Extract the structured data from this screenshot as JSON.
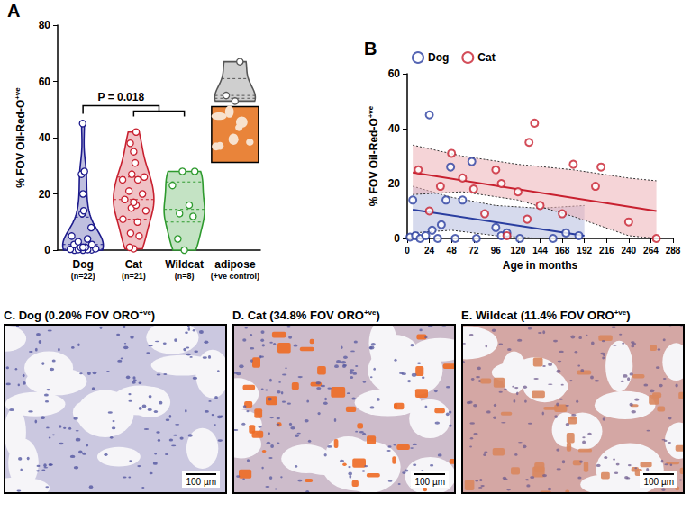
{
  "chart_data": [
    {
      "panel": "A",
      "type": "violin",
      "categories": [
        "Dog",
        "Cat",
        "Wildcat",
        "adipose"
      ],
      "category_notes": [
        "(n=22)",
        "(n=21)",
        "(n=8)",
        "(+ve control)"
      ],
      "ylabel": [
        "% FOV Oil-Red-O",
        "+ve"
      ],
      "ylim": [
        0,
        80
      ],
      "yticks": [
        0,
        20,
        40,
        60,
        80
      ],
      "grid": false,
      "colors": [
        "#1c1a8c",
        "#c8202f",
        "#2e9a2e",
        "#555555"
      ],
      "values": [
        [
          45,
          28,
          27,
          20,
          14,
          13,
          8,
          5,
          4,
          3,
          2,
          2,
          1,
          1,
          1,
          0.5,
          0.3,
          0.2,
          0.2,
          0.1,
          0,
          0
        ],
        [
          42,
          38,
          35,
          31,
          27,
          26,
          25,
          25,
          21,
          20,
          18,
          17,
          16,
          15,
          14,
          11,
          10,
          6,
          5,
          1,
          0.5
        ],
        [
          28,
          28,
          23,
          16,
          13,
          12,
          4,
          0
        ],
        [
          67,
          55,
          53
        ]
      ],
      "annotations": [
        {
          "text": "P = 0.018",
          "from": "Dog",
          "to": [
            "Cat",
            "Wildcat"
          ]
        }
      ]
    },
    {
      "panel": "B",
      "type": "scatter",
      "xlabel": "Age in months",
      "ylabel": [
        "% FOV Oil-Red-O",
        "+ve"
      ],
      "xlim": [
        0,
        288
      ],
      "xticks": [
        0,
        24,
        48,
        72,
        96,
        120,
        144,
        168,
        192,
        216,
        240,
        264,
        288
      ],
      "ylim": [
        0,
        60
      ],
      "yticks": [
        0,
        20,
        40,
        60
      ],
      "grid": false,
      "legend": "top left",
      "series": [
        {
          "name": "Dog",
          "color": "#2a3ea0",
          "marker": "circle",
          "x": [
            3,
            6,
            9,
            14,
            20,
            24,
            27,
            33,
            37,
            42,
            47,
            52,
            60,
            70,
            75,
            96,
            102,
            108,
            122,
            158,
            172,
            186
          ],
          "values": [
            0.5,
            14,
            1,
            0,
            1,
            45,
            3,
            0,
            5,
            14,
            26,
            0,
            14,
            28,
            0,
            4,
            1,
            2,
            0,
            0,
            2,
            1
          ],
          "fit": {
            "x": [
              6,
              192
            ],
            "values": [
              10.5,
              1
            ]
          },
          "ci": {
            "x": [
              6,
              48,
              96,
              144,
              192
            ],
            "lower": [
              2,
              3,
              1,
              -3,
              -8
            ],
            "upper": [
              19,
              15,
              12,
              11,
              12
            ]
          }
        },
        {
          "name": "Cat",
          "color": "#c8202f",
          "marker": "circle",
          "x": [
            12,
            24,
            36,
            48,
            60,
            72,
            84,
            96,
            102,
            108,
            120,
            130,
            132,
            138,
            144,
            168,
            180,
            204,
            210,
            240,
            270
          ],
          "values": [
            25,
            10,
            19,
            31,
            22,
            18,
            9,
            25,
            20,
            1,
            17,
            7,
            35,
            42,
            12,
            9,
            27,
            19,
            26,
            6,
            0
          ],
          "fit": {
            "x": [
              6,
              270
            ],
            "values": [
              24,
              10
            ]
          },
          "ci": {
            "x": [
              6,
              60,
              120,
              180,
              240,
              270
            ],
            "lower": [
              16,
              17,
              14,
              8,
              1,
              -1
            ],
            "upper": [
              34,
              30,
              27,
              25,
              22,
              21
            ]
          }
        }
      ]
    }
  ],
  "images": [
    {
      "letter": "C.",
      "title": [
        "Dog (0.20% FOV ORO",
        "+ve",
        ")"
      ],
      "scale_bar": "100 µm"
    },
    {
      "letter": "D.",
      "title": [
        "Cat (34.8% FOV ORO",
        "+ve",
        ")"
      ],
      "scale_bar": "100 µm"
    },
    {
      "letter": "E.",
      "title": [
        "Wildcat (11.4% FOV ORO",
        "+ve",
        ")"
      ],
      "scale_bar": "100 µm"
    }
  ]
}
